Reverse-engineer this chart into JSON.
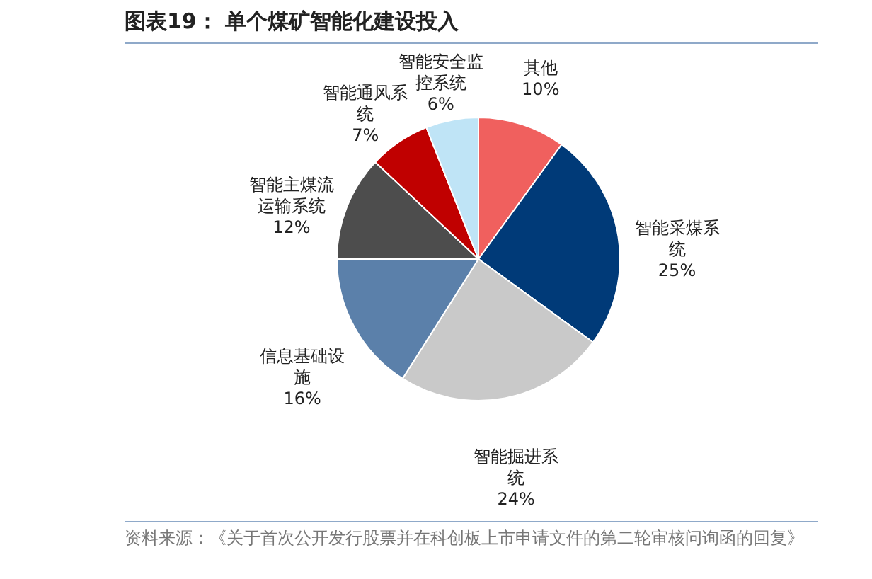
{
  "chart_data": {
    "type": "pie",
    "title": "图表19：  单个煤矿智能化建设投入",
    "categories": [
      "其他",
      "智能采煤系统",
      "智能掘进系统",
      "信息基础设施",
      "智能主煤流运输系统",
      "智能通风系统",
      "智能安全监控系统"
    ],
    "values": [
      10,
      25,
      24,
      16,
      12,
      7,
      6
    ],
    "value_labels": [
      "10%",
      "25%",
      "24%",
      "16%",
      "12%",
      "7%",
      "6%"
    ],
    "colors": [
      "#f0605e",
      "#003a78",
      "#c9c9c9",
      "#5b80aa",
      "#4d4d4d",
      "#c00000",
      "#bfe4f6"
    ],
    "annotations": [
      "资料来源：《关于首次公开发行股票并在科创板上市申请文件的第二轮审核问询函的回复》"
    ]
  }
}
